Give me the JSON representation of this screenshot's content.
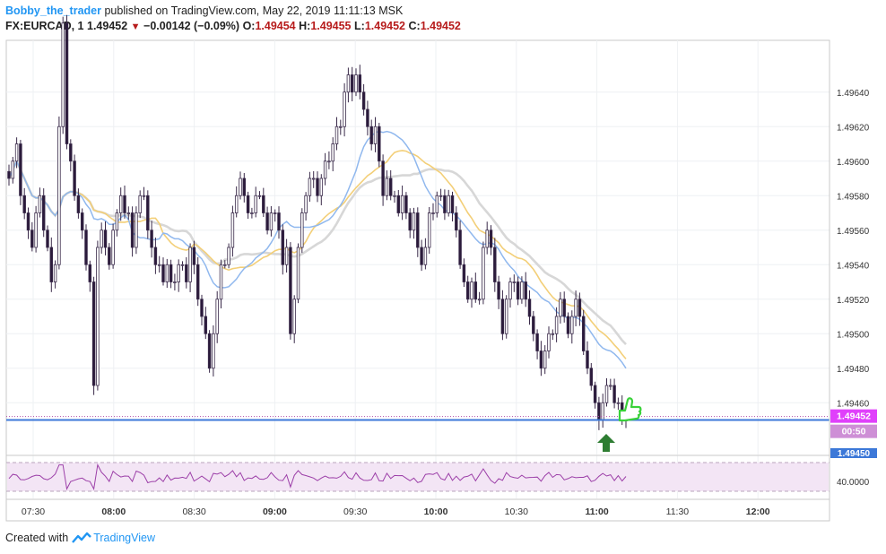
{
  "header": {
    "author": "Bobby_the_trader",
    "published": "published on TradingView.com, May 22, 2019 11:11:13 MSK",
    "symbol": "FX:EURCAD, 1",
    "last": "1.49452",
    "change": "−0.00142 (−0.09%)",
    "o_label": "O:",
    "o": "1.49454",
    "h_label": "H:",
    "h": "1.49455",
    "l_label": "L:",
    "l": "1.49452",
    "c_label": "C:",
    "c": "1.49452"
  },
  "footer": {
    "created_with": "Created with",
    "brand": "TradingView"
  },
  "colors": {
    "up_candle": "#ffffff",
    "down_candle": "#2a1a3a",
    "wick": "#3a2a4a",
    "ma_fast": "#90b8ee",
    "ma_mid": "#f3cf78",
    "ma_slow": "#d7d7d7",
    "support_line": "#3c78d8",
    "price_label": "#e040fb",
    "rsi_line": "#9c3fa8",
    "rsi_band": "#f3e5f5",
    "arrow": "#2e7d32",
    "thumb": "#39d139"
  },
  "chart_data": {
    "type": "candlestick",
    "price_axis": {
      "ticks": [
        "1.49640",
        "1.49620",
        "1.49600",
        "1.49580",
        "1.49560",
        "1.49540",
        "1.49520",
        "1.49500",
        "1.49480",
        "1.49460"
      ],
      "range": [
        1.4943,
        1.4967
      ]
    },
    "time_axis": {
      "ticks": [
        "07:30",
        "08:00",
        "08:30",
        "09:00",
        "09:30",
        "10:00",
        "10:30",
        "11:00",
        "11:30",
        "12:00"
      ]
    },
    "last_price_label": "1.49452",
    "countdown_label": "00:50",
    "support_label": "1.49450",
    "support_level": 1.4945,
    "rsi": {
      "level_label": "40.0000",
      "level": 40
    },
    "closes": [
      1.4959,
      1.496,
      1.4961,
      1.4958,
      1.4957,
      1.4956,
      1.4955,
      1.4957,
      1.4958,
      1.4956,
      1.4955,
      1.4953,
      1.4954,
      1.4962,
      1.4968,
      1.4961,
      1.496,
      1.4958,
      1.4957,
      1.4956,
      1.4954,
      1.4953,
      1.4947,
      1.4955,
      1.4956,
      1.4955,
      1.4954,
      1.4956,
      1.4957,
      1.4958,
      1.4957,
      1.4957,
      1.4955,
      1.4957,
      1.4958,
      1.4958,
      1.4956,
      1.4955,
      1.4954,
      1.4954,
      1.4953,
      1.4954,
      1.4953,
      1.4953,
      1.4954,
      1.4954,
      1.4953,
      1.4955,
      1.4954,
      1.4952,
      1.4951,
      1.495,
      1.4948,
      1.495,
      1.4952,
      1.4954,
      1.4954,
      1.4955,
      1.4957,
      1.4958,
      1.4959,
      1.4958,
      1.4957,
      1.4957,
      1.4958,
      1.4958,
      1.4957,
      1.4956,
      1.4957,
      1.4957,
      1.4956,
      1.4954,
      1.4955,
      1.495,
      1.4952,
      1.4955,
      1.4957,
      1.4958,
      1.4959,
      1.4959,
      1.4958,
      1.4959,
      1.496,
      1.496,
      1.4961,
      1.4962,
      1.4962,
      1.4964,
      1.4965,
      1.4964,
      1.4965,
      1.4964,
      1.4963,
      1.4962,
      1.4961,
      1.4962,
      1.496,
      1.4958,
      1.4959,
      1.4958,
      1.4958,
      1.4957,
      1.4958,
      1.4957,
      1.4956,
      1.4957,
      1.4955,
      1.4954,
      1.4955,
      1.4957,
      1.4957,
      1.4958,
      1.4958,
      1.4957,
      1.4958,
      1.4957,
      1.4956,
      1.4954,
      1.4953,
      1.4952,
      1.4953,
      1.4952,
      1.4952,
      1.4955,
      1.4956,
      1.4955,
      1.4953,
      1.4952,
      1.495,
      1.4952,
      1.4953,
      1.4953,
      1.4952,
      1.4953,
      1.4952,
      1.4951,
      1.495,
      1.4949,
      1.4948,
      1.4949,
      1.495,
      1.495,
      1.4951,
      1.4952,
      1.4951,
      1.495,
      1.4951,
      1.4952,
      1.4951,
      1.4949,
      1.4948,
      1.4947,
      1.4946,
      1.4945,
      1.4946,
      1.4947,
      1.4947,
      1.4946,
      1.4946,
      1.4945,
      1.4945
    ]
  }
}
